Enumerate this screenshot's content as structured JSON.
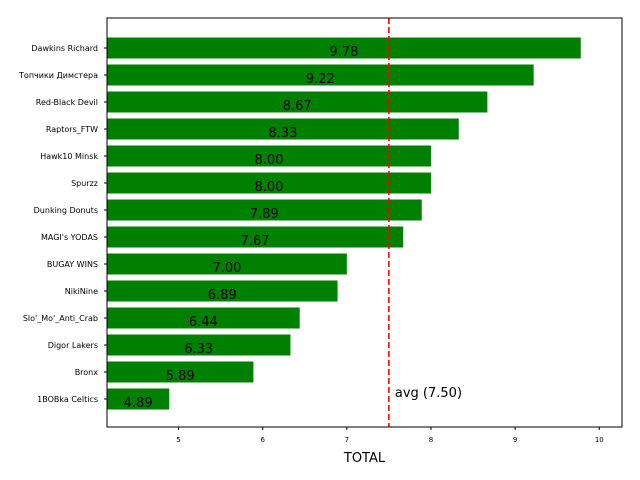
{
  "chart_data": {
    "type": "bar",
    "orientation": "horizontal",
    "categories": [
      "Dawkins Richard",
      "Топчики Димстера",
      "Red-Black Devil",
      "Raptors_FTW",
      "Hawk10 Minsk",
      "Spurzz",
      "Dunking Donuts",
      "MAGI's YODAS",
      "BUGAY WINS",
      "NikiNine",
      "Slo'_Mo'_Anti_Crab",
      "Digor Lakers",
      "Bronx",
      "1BOBka Celtics"
    ],
    "values": [
      9.78,
      9.22,
      8.67,
      8.33,
      8.0,
      8.0,
      7.89,
      7.67,
      7.0,
      6.89,
      6.44,
      6.33,
      5.89,
      4.89
    ],
    "value_labels": [
      "9.78",
      "9.22",
      "8.67",
      "8.33",
      "8.00",
      "8.00",
      "7.89",
      "7.67",
      "7.00",
      "6.89",
      "6.44",
      "6.33",
      "5.89",
      "4.89"
    ],
    "title": "",
    "xlabel": "TOTAL",
    "ylabel": "",
    "xlim": [
      4.15,
      10.27
    ],
    "xticks": [
      5,
      6,
      7,
      8,
      9,
      10
    ],
    "xtick_labels": [
      "5",
      "6",
      "7",
      "8",
      "9",
      "10"
    ],
    "bar_color": "#008000",
    "reference_line": {
      "value": 7.5,
      "label": "avg (7.50)",
      "color": "#ff0000",
      "style": "dashed"
    },
    "grid": false,
    "legend": "none"
  }
}
